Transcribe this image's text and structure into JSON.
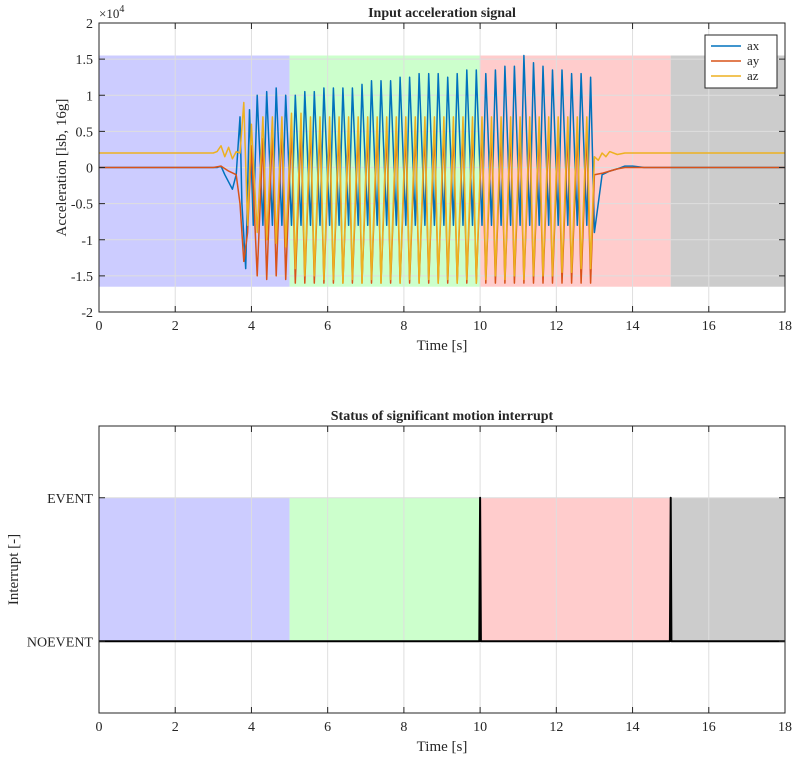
{
  "chart_data": [
    {
      "type": "line",
      "title": "Input acceleration signal",
      "xlabel": "Time [s]",
      "ylabel": "Acceleration [lsb, 16g]",
      "y_exponent_label": "×10",
      "y_exponent_power": "4",
      "xlim": [
        0,
        18
      ],
      "ylim": [
        -2,
        2
      ],
      "y_scale": 10000,
      "xticks": [
        0,
        2,
        4,
        6,
        8,
        10,
        12,
        14,
        16,
        18
      ],
      "xtick_labels": [
        "0",
        "2",
        "4",
        "6",
        "8",
        "10",
        "12",
        "14",
        "16",
        "18"
      ],
      "yticks": [
        -2,
        -1.5,
        -1,
        -0.5,
        0,
        0.5,
        1,
        1.5,
        2
      ],
      "ytick_labels": [
        "-2",
        "-1.5",
        "-1",
        "-0.5",
        "0",
        "0.5",
        "1",
        "1.5",
        "2"
      ],
      "grid": true,
      "legend_position": "top-right",
      "regions": [
        {
          "x0": 0,
          "x1": 5,
          "y0": -1.65,
          "y1": 1.55,
          "color": "#ccccff"
        },
        {
          "x0": 5,
          "x1": 10,
          "y0": -1.65,
          "y1": 1.55,
          "color": "#ccffcc"
        },
        {
          "x0": 10,
          "x1": 15,
          "y0": -1.65,
          "y1": 1.55,
          "color": "#ffcccc"
        },
        {
          "x0": 15,
          "x1": 18,
          "y0": -1.65,
          "y1": 1.55,
          "color": "#cccccc"
        }
      ],
      "series": [
        {
          "name": "ax",
          "color": "#0072BD",
          "x": [
            0,
            3.0,
            3.1,
            3.2,
            3.3,
            3.5,
            3.6,
            3.7,
            3.75,
            3.85,
            3.95,
            4.05,
            4.15,
            4.3,
            4.4,
            4.55,
            4.65,
            4.8,
            4.9,
            5.05,
            5.15,
            5.3,
            5.4,
            5.55,
            5.65,
            5.8,
            5.9,
            6.05,
            6.15,
            6.3,
            6.4,
            6.55,
            6.65,
            6.8,
            6.9,
            7.05,
            7.15,
            7.3,
            7.4,
            7.55,
            7.65,
            7.8,
            7.9,
            8.05,
            8.15,
            8.3,
            8.4,
            8.55,
            8.65,
            8.8,
            8.9,
            9.05,
            9.15,
            9.3,
            9.4,
            9.55,
            9.65,
            9.8,
            9.9,
            10.05,
            10.15,
            10.3,
            10.4,
            10.55,
            10.65,
            10.8,
            10.9,
            11.05,
            11.15,
            11.3,
            11.4,
            11.55,
            11.65,
            11.8,
            11.9,
            12.05,
            12.15,
            12.3,
            12.4,
            12.55,
            12.65,
            12.8,
            12.9,
            13.0,
            13.2,
            13.4,
            13.6,
            13.8,
            14.0,
            14.3,
            18
          ],
          "y": [
            0,
            0,
            0,
            0.02,
            -0.1,
            -0.3,
            -0.1,
            0.7,
            -0.5,
            -1.4,
            0.8,
            -0.8,
            1.0,
            -0.8,
            1.05,
            -0.8,
            1.1,
            -0.8,
            1.0,
            -0.8,
            1.0,
            -0.8,
            1.05,
            -0.8,
            1.05,
            -0.8,
            1.1,
            -0.8,
            1.1,
            -0.8,
            1.1,
            -0.8,
            1.1,
            -0.8,
            1.15,
            -0.8,
            1.2,
            -0.8,
            1.2,
            -0.8,
            1.2,
            -0.8,
            1.25,
            -0.8,
            1.25,
            -0.8,
            1.3,
            -0.8,
            1.3,
            -0.8,
            1.3,
            -0.8,
            1.25,
            -0.8,
            1.3,
            -0.8,
            1.35,
            -0.8,
            1.35,
            -0.8,
            1.3,
            -0.8,
            1.35,
            -0.8,
            1.4,
            -0.8,
            1.4,
            -0.8,
            1.55,
            -0.8,
            1.45,
            -0.8,
            1.4,
            -0.8,
            1.35,
            -0.8,
            1.35,
            -0.8,
            1.3,
            -0.8,
            1.3,
            -0.8,
            1.25,
            -0.9,
            -0.1,
            -0.05,
            -0.02,
            0.02,
            0.02,
            0,
            0
          ]
        },
        {
          "name": "ay",
          "color": "#D95319",
          "x": [
            0,
            3.0,
            3.2,
            3.4,
            3.6,
            3.7,
            3.8,
            3.9,
            4.0,
            4.15,
            4.3,
            4.4,
            4.55,
            4.65,
            4.8,
            4.9,
            5.05,
            5.15,
            5.3,
            5.4,
            5.55,
            5.65,
            5.8,
            5.9,
            6.05,
            6.15,
            6.3,
            6.4,
            6.55,
            6.65,
            6.8,
            6.9,
            7.05,
            7.15,
            7.3,
            7.4,
            7.55,
            7.65,
            7.8,
            7.9,
            8.05,
            8.15,
            8.3,
            8.4,
            8.55,
            8.65,
            8.8,
            8.9,
            9.05,
            9.15,
            9.3,
            9.4,
            9.55,
            9.65,
            9.8,
            9.9,
            10.05,
            10.15,
            10.3,
            10.4,
            10.55,
            10.65,
            10.8,
            10.9,
            11.05,
            11.15,
            11.3,
            11.4,
            11.55,
            11.65,
            11.8,
            11.9,
            12.05,
            12.15,
            12.3,
            12.4,
            12.55,
            12.65,
            12.8,
            12.9,
            13.0,
            13.2,
            13.4,
            13.6,
            13.8,
            14.0,
            18
          ],
          "y": [
            0,
            0,
            0.02,
            -0.05,
            -0.1,
            -0.5,
            -1.3,
            -0.9,
            0.3,
            -1.5,
            0.4,
            -1.55,
            0.5,
            -1.5,
            0.55,
            -1.55,
            0.55,
            -1.6,
            0.5,
            -1.6,
            0.55,
            -1.6,
            0.55,
            -1.6,
            0.5,
            -1.6,
            0.5,
            -1.6,
            0.5,
            -1.6,
            0.5,
            -1.6,
            0.5,
            -1.6,
            0.5,
            -1.6,
            0.5,
            -1.6,
            0.5,
            -1.6,
            0.5,
            -1.6,
            0.5,
            -1.6,
            0.5,
            -1.6,
            0.5,
            -1.6,
            0.5,
            -1.6,
            0.5,
            -1.6,
            0.5,
            -1.6,
            0.5,
            -1.6,
            0.5,
            -1.6,
            0.5,
            -1.6,
            0.5,
            -1.6,
            0.5,
            -1.6,
            0.5,
            -1.6,
            0.5,
            -1.6,
            0.5,
            -1.6,
            0.5,
            -1.6,
            0.5,
            -1.6,
            0.5,
            -1.6,
            0.5,
            -1.6,
            0.5,
            -1.6,
            -0.1,
            -0.08,
            -0.05,
            -0.02,
            0,
            0,
            0
          ]
        },
        {
          "name": "az",
          "color": "#EDB120",
          "x": [
            0,
            3.0,
            3.1,
            3.2,
            3.3,
            3.4,
            3.5,
            3.6,
            3.7,
            3.8,
            3.9,
            4.0,
            4.15,
            4.3,
            4.4,
            4.55,
            4.65,
            4.8,
            4.9,
            5.05,
            5.15,
            5.3,
            5.4,
            5.55,
            5.65,
            5.8,
            5.9,
            6.05,
            6.15,
            6.3,
            6.4,
            6.55,
            6.65,
            6.8,
            6.9,
            7.05,
            7.15,
            7.3,
            7.4,
            7.55,
            7.65,
            7.8,
            7.9,
            8.05,
            8.15,
            8.3,
            8.4,
            8.55,
            8.65,
            8.8,
            8.9,
            9.05,
            9.15,
            9.3,
            9.4,
            9.55,
            9.65,
            9.8,
            9.9,
            10.05,
            10.15,
            10.3,
            10.4,
            10.55,
            10.65,
            10.8,
            10.9,
            11.05,
            11.15,
            11.3,
            11.4,
            11.55,
            11.65,
            11.8,
            11.9,
            12.05,
            12.15,
            12.3,
            12.4,
            12.55,
            12.65,
            12.8,
            12.9,
            13.0,
            13.1,
            13.2,
            13.3,
            13.4,
            13.6,
            13.8,
            14.0,
            14.3,
            18
          ],
          "y": [
            0.2,
            0.2,
            0.22,
            0.3,
            0.15,
            0.28,
            0.12,
            0.22,
            0.2,
            0.9,
            -0.8,
            0.6,
            -0.9,
            0.7,
            -1.0,
            0.7,
            -1.05,
            0.7,
            -1.1,
            0.75,
            -1.4,
            0.75,
            -1.5,
            0.7,
            -1.5,
            0.7,
            -1.55,
            0.7,
            -1.55,
            0.7,
            -1.6,
            0.7,
            -1.55,
            0.7,
            -1.6,
            0.7,
            -1.55,
            0.7,
            -1.6,
            0.7,
            -1.55,
            0.7,
            -1.6,
            0.7,
            -1.55,
            0.7,
            -1.6,
            0.7,
            -1.55,
            0.7,
            -1.6,
            0.7,
            -1.55,
            0.7,
            -1.6,
            0.7,
            -1.55,
            0.7,
            -1.6,
            0.7,
            -1.55,
            0.7,
            -1.5,
            0.7,
            -1.55,
            0.7,
            -1.5,
            0.7,
            -1.55,
            0.7,
            -1.5,
            0.7,
            -1.5,
            0.7,
            -1.5,
            0.7,
            -1.45,
            0.7,
            -1.45,
            0.7,
            -1.4,
            0.7,
            -1.4,
            0.15,
            0.1,
            0.2,
            0.15,
            0.22,
            0.18,
            0.2,
            0.2,
            0.2,
            0.2
          ]
        }
      ]
    },
    {
      "type": "line",
      "title": "Status of significant motion interrupt",
      "xlabel": "Time [s]",
      "ylabel": "Interrupt [-]",
      "xlim": [
        0,
        18
      ],
      "ylim": [
        -0.5,
        1.5
      ],
      "xticks": [
        0,
        2,
        4,
        6,
        8,
        10,
        12,
        14,
        16,
        18
      ],
      "xtick_labels": [
        "0",
        "2",
        "4",
        "6",
        "8",
        "10",
        "12",
        "14",
        "16",
        "18"
      ],
      "yticks": [
        0,
        1
      ],
      "ytick_labels": [
        "NOEVENT",
        "EVENT"
      ],
      "grid": true,
      "regions": [
        {
          "x0": 0,
          "x1": 5,
          "y0": 0,
          "y1": 1,
          "color": "#ccccff"
        },
        {
          "x0": 5,
          "x1": 10,
          "y0": 0,
          "y1": 1,
          "color": "#ccffcc"
        },
        {
          "x0": 10,
          "x1": 15,
          "y0": 0,
          "y1": 1,
          "color": "#ffcccc"
        },
        {
          "x0": 15,
          "x1": 18,
          "y0": 0,
          "y1": 1,
          "color": "#cccccc"
        }
      ],
      "series": [
        {
          "color": "#000000",
          "x": [
            0,
            9.98,
            10.0,
            10.02,
            14.98,
            15.0,
            15.02,
            18
          ],
          "y": [
            0,
            0,
            1,
            0,
            0,
            1,
            0,
            0
          ]
        }
      ]
    }
  ]
}
